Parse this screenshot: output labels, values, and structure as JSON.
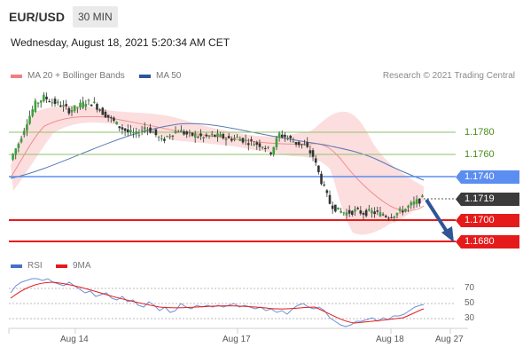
{
  "header": {
    "pair": "EUR/USD",
    "timeframe": "30 MIN",
    "datetime": "Wednesday, August 18, 2021 5:20:34 AM CET"
  },
  "legend": {
    "ma20_label": "MA 20 + Bollinger Bands",
    "ma20_color": "#f08080",
    "ma50_label": "MA 50",
    "ma50_color": "#2f5597",
    "credit": "Research © 2021 Trading Central"
  },
  "rsi_legend": {
    "rsi_label": "RSI",
    "rsi_color": "#4472c4",
    "ma_label": "9MA",
    "ma_color": "#e51b1b"
  },
  "levels": {
    "r2": "1.1780",
    "r1": "1.1760",
    "pivot": "1.1740",
    "last": "1.1719",
    "s1": "1.1700",
    "s2": "1.1680"
  },
  "rsi_axis": {
    "l70": "70",
    "l50": "50",
    "l30": "30"
  },
  "x_axis": [
    "Aug 14",
    "Aug 17",
    "Aug 18",
    "Aug 27"
  ],
  "chart_data": {
    "type": "candlestick",
    "ylim": [
      1.1672,
      1.1835
    ],
    "price_series": [
      1.1755,
      1.177,
      1.179,
      1.1806,
      1.1812,
      1.1808,
      1.1805,
      1.18,
      1.1803,
      1.1808,
      1.1806,
      1.1798,
      1.1792,
      1.1785,
      1.178,
      1.1778,
      1.1785,
      1.178,
      1.1772,
      1.1778,
      1.1782,
      1.1778,
      1.1777,
      1.1775,
      1.1777,
      1.1776,
      1.1774,
      1.1775,
      1.1772,
      1.177,
      1.1768,
      1.1762,
      1.1778,
      1.1775,
      1.177,
      1.1768,
      1.1758,
      1.1735,
      1.1715,
      1.1708,
      1.1706,
      1.1708,
      1.1706,
      1.1707,
      1.1705,
      1.1703,
      1.1706,
      1.171,
      1.1715,
      1.1719
    ],
    "rsi_ylim": [
      20,
      80
    ],
    "rsi_levels": [
      70,
      50,
      30
    ]
  }
}
